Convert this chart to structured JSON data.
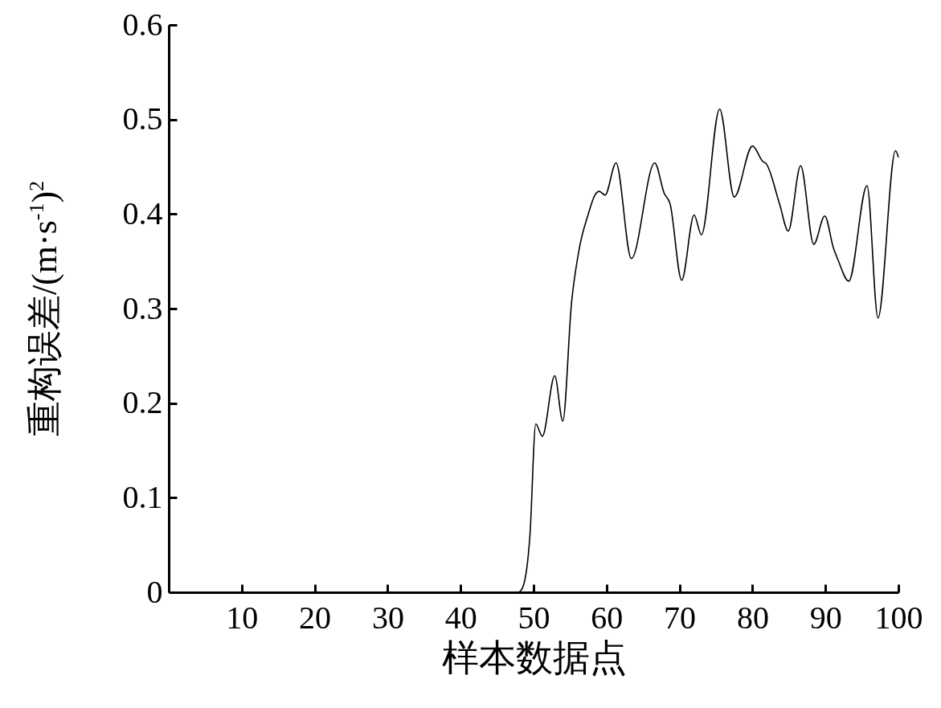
{
  "chart_data": {
    "type": "line",
    "xlabel": "样本数据点",
    "ylabel": "重构误差/(m·s$^{-1}$)$^{2}$",
    "xlim": [
      0,
      100
    ],
    "xticks": [
      10,
      20,
      30,
      40,
      50,
      60,
      70,
      80,
      90,
      100
    ],
    "ylim": [
      0,
      0.6
    ],
    "yticks": [
      0,
      0.1,
      0.2,
      0.3,
      0.4,
      0.5,
      0.6
    ],
    "grid": false,
    "series": [
      {
        "color": "#000000",
        "x": [
          0,
          10,
          20,
          30,
          40,
          47.9,
          48.5,
          49.5,
          50.3,
          51.2,
          52.9,
          54.0,
          55.2,
          56.3,
          57.5,
          58.4,
          59.0,
          59.8,
          61.3,
          63.4,
          66.6,
          67.9,
          68.7,
          70.3,
          72.0,
          73.0,
          75.5,
          77.5,
          80.0,
          81.5,
          81.8,
          83.7,
          84.9,
          86.6,
          88.4,
          89.9,
          91.1,
          91.7,
          93.2,
          95.7,
          97.2,
          99.6,
          100
        ],
        "values": [
          0,
          0,
          0,
          0,
          0,
          0,
          0.005,
          0.06,
          0.178,
          0.165,
          0.229,
          0.181,
          0.306,
          0.365,
          0.4,
          0.42,
          0.424,
          0.42,
          0.454,
          0.353,
          0.454,
          0.422,
          0.411,
          0.33,
          0.399,
          0.378,
          0.511,
          0.418,
          0.472,
          0.455,
          0.454,
          0.411,
          0.382,
          0.451,
          0.368,
          0.398,
          0.364,
          0.352,
          0.329,
          0.43,
          0.29,
          0.467,
          0.46
        ]
      }
    ]
  }
}
